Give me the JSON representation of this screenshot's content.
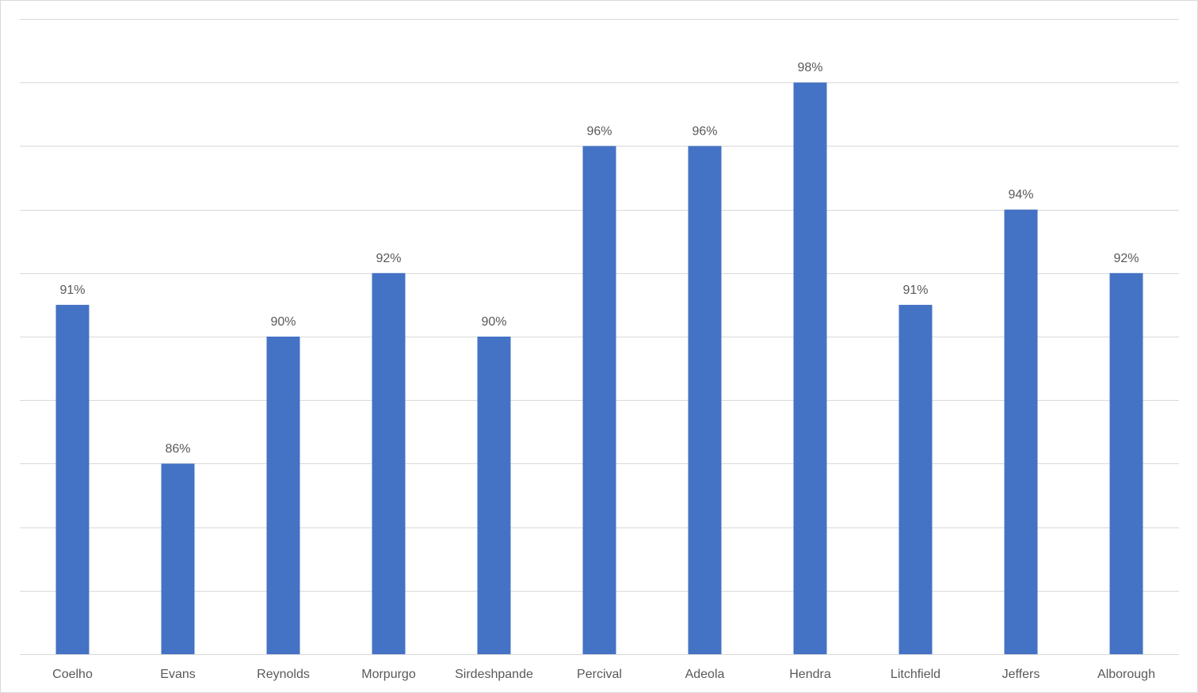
{
  "chart_data": {
    "type": "bar",
    "categories": [
      "Coelho",
      "Evans",
      "Reynolds",
      "Morpurgo",
      "Sirdeshpande",
      "Percival",
      "Adeola",
      "Hendra",
      "Litchfield",
      "Jeffers",
      "Alborough"
    ],
    "values": [
      91,
      86,
      90,
      92,
      90,
      96,
      96,
      98,
      91,
      94,
      92
    ],
    "data_labels": [
      "91%",
      "86%",
      "90%",
      "92%",
      "90%",
      "96%",
      "96%",
      "98%",
      "91%",
      "94%",
      "92%"
    ],
    "value_unit": "%",
    "ylim": [
      80,
      100
    ],
    "y_gridline_step": 2,
    "y_tick_labels_shown": false,
    "grid": true,
    "legend": "none",
    "title": "",
    "xlabel": "",
    "ylabel": "",
    "colors": {
      "bar": "#4472c4",
      "gridline": "#d9d9d9",
      "text": "#595959",
      "border": "#d9d9d9"
    }
  }
}
